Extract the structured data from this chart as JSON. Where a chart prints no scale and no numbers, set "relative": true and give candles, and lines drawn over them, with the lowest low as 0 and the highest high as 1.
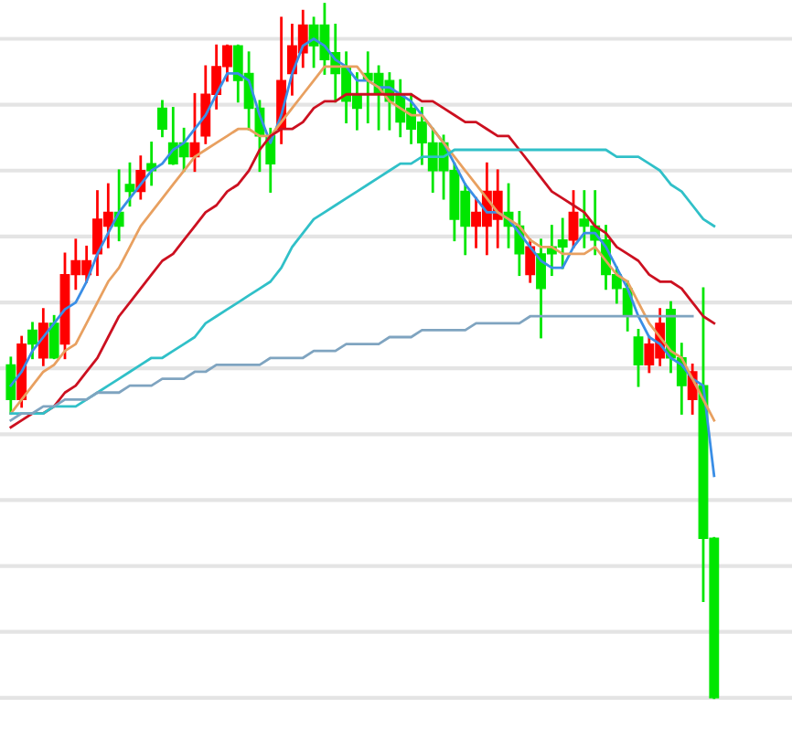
{
  "chart_data": {
    "type": "candlestick",
    "relative": true,
    "grid": "y",
    "categories": [
      null,
      null,
      null,
      null,
      null,
      null,
      null,
      null,
      null,
      null,
      null,
      null,
      null,
      null,
      null,
      null,
      null,
      null,
      null,
      null,
      null,
      null,
      null,
      null,
      null,
      null,
      null,
      null,
      null,
      null,
      null,
      null,
      null,
      null,
      null,
      null,
      null,
      null,
      null,
      null,
      null,
      null,
      null,
      null,
      null,
      null,
      null,
      null,
      null,
      null,
      null,
      null,
      null,
      null,
      null,
      null,
      null,
      null,
      null,
      null,
      null,
      null,
      null,
      null,
      null,
      null
    ],
    "colors": [
      "#00e600",
      "#ff0000",
      "#00e600",
      "#ff0000",
      "#00e600",
      "#ff0000",
      "#ff0000",
      "#ff0000",
      "#ff0000",
      "#ff0000",
      "#00e600",
      "#00e600",
      "#ff0000",
      "#00e600",
      "#00e600",
      "#00e600",
      "#00e600",
      "#ff0000",
      "#ff0000",
      "#ff0000",
      "#ff0000",
      "#00e600",
      "#00e600",
      "#00e600",
      "#00e600",
      "#ff0000",
      "#ff0000",
      "#ff0000",
      "#00e600",
      "#00e600",
      "#00e600",
      "#00e600",
      "#00e600",
      "#00e600",
      "#00e600",
      "#00e600",
      "#00e600",
      "#00e600",
      "#00e600",
      "#00e600",
      "#00e600",
      "#00e600",
      "#00e600",
      "#ff0000",
      "#ff0000",
      "#ff0000",
      "#00e600",
      "#00e600",
      "#ff0000",
      "#00e600",
      "#00e600",
      "#00e600",
      "#ff0000",
      "#00e600",
      "#00e600",
      "#00e600",
      "#00e600",
      "#00e600",
      "#00e600",
      "#ff0000",
      "#ff0000",
      "#00e600",
      "#00e600",
      "#ff0000",
      "#00e600",
      "#00e600"
    ],
    "ohlc": [
      [
        0.48,
        0.49,
        0.41,
        0.43
      ],
      [
        0.43,
        0.52,
        0.42,
        0.51
      ],
      [
        0.53,
        0.54,
        0.49,
        0.51
      ],
      [
        0.49,
        0.56,
        0.48,
        0.54
      ],
      [
        0.54,
        0.55,
        0.49,
        0.49
      ],
      [
        0.51,
        0.64,
        0.49,
        0.61
      ],
      [
        0.61,
        0.66,
        0.59,
        0.63
      ],
      [
        0.61,
        0.65,
        0.6,
        0.63
      ],
      [
        0.64,
        0.73,
        0.61,
        0.69
      ],
      [
        0.68,
        0.74,
        0.65,
        0.7
      ],
      [
        0.7,
        0.76,
        0.66,
        0.68
      ],
      [
        0.74,
        0.77,
        0.71,
        0.73
      ],
      [
        0.73,
        0.78,
        0.72,
        0.76
      ],
      [
        0.77,
        0.8,
        0.74,
        0.76
      ],
      [
        0.85,
        0.86,
        0.81,
        0.82
      ],
      [
        0.8,
        0.85,
        0.77,
        0.77
      ],
      [
        0.8,
        0.82,
        0.76,
        0.78
      ],
      [
        0.78,
        0.87,
        0.76,
        0.8
      ],
      [
        0.81,
        0.91,
        0.8,
        0.87
      ],
      [
        0.87,
        0.94,
        0.85,
        0.91
      ],
      [
        0.91,
        0.94,
        0.89,
        0.94
      ],
      [
        0.94,
        0.94,
        0.86,
        0.89
      ],
      [
        0.9,
        0.93,
        0.82,
        0.85
      ],
      [
        0.85,
        0.86,
        0.76,
        0.81
      ],
      [
        0.81,
        0.82,
        0.73,
        0.77
      ],
      [
        0.82,
        0.98,
        0.8,
        0.89
      ],
      [
        0.9,
        0.97,
        0.87,
        0.94
      ],
      [
        0.93,
        0.99,
        0.91,
        0.97
      ],
      [
        0.97,
        0.98,
        0.91,
        0.94
      ],
      [
        0.97,
        1.0,
        0.9,
        0.92
      ],
      [
        0.93,
        0.97,
        0.86,
        0.9
      ],
      [
        0.91,
        0.93,
        0.83,
        0.86
      ],
      [
        0.87,
        0.9,
        0.82,
        0.85
      ],
      [
        0.9,
        0.93,
        0.83,
        0.89
      ],
      [
        0.9,
        0.91,
        0.82,
        0.87
      ],
      [
        0.89,
        0.9,
        0.82,
        0.86
      ],
      [
        0.87,
        0.89,
        0.81,
        0.83
      ],
      [
        0.85,
        0.87,
        0.8,
        0.82
      ],
      [
        0.83,
        0.85,
        0.77,
        0.8
      ],
      [
        0.8,
        0.82,
        0.73,
        0.76
      ],
      [
        0.8,
        0.81,
        0.72,
        0.76
      ],
      [
        0.76,
        0.77,
        0.66,
        0.69
      ],
      [
        0.73,
        0.74,
        0.64,
        0.68
      ],
      [
        0.68,
        0.72,
        0.65,
        0.7
      ],
      [
        0.68,
        0.77,
        0.64,
        0.73
      ],
      [
        0.69,
        0.76,
        0.65,
        0.73
      ],
      [
        0.7,
        0.74,
        0.65,
        0.68
      ],
      [
        0.68,
        0.7,
        0.61,
        0.64
      ],
      [
        0.61,
        0.66,
        0.6,
        0.65
      ],
      [
        0.64,
        0.66,
        0.52,
        0.59
      ],
      [
        0.65,
        0.68,
        0.61,
        0.64
      ],
      [
        0.66,
        0.69,
        0.62,
        0.65
      ],
      [
        0.66,
        0.73,
        0.65,
        0.7
      ],
      [
        0.69,
        0.73,
        0.65,
        0.68
      ],
      [
        0.68,
        0.73,
        0.64,
        0.66
      ],
      [
        0.66,
        0.68,
        0.59,
        0.61
      ],
      [
        0.61,
        0.62,
        0.57,
        0.59
      ],
      [
        0.59,
        0.6,
        0.53,
        0.55
      ],
      [
        0.52,
        0.53,
        0.45,
        0.48
      ],
      [
        0.48,
        0.52,
        0.47,
        0.51
      ],
      [
        0.49,
        0.56,
        0.48,
        0.54
      ],
      [
        0.56,
        0.57,
        0.47,
        0.49
      ],
      [
        0.49,
        0.51,
        0.41,
        0.45
      ],
      [
        0.43,
        0.48,
        0.41,
        0.47
      ],
      [
        0.45,
        0.59,
        0.14,
        0.23
      ],
      [
        0.23,
        0.23,
        0.0,
        0.0
      ]
    ],
    "series": [
      {
        "type": "line",
        "color": "#3a8ee6",
        "values": [
          0.45,
          0.47,
          0.5,
          0.52,
          0.54,
          0.56,
          0.57,
          0.6,
          0.64,
          0.67,
          0.7,
          0.72,
          0.74,
          0.76,
          0.77,
          0.79,
          0.8,
          0.82,
          0.84,
          0.87,
          0.9,
          0.9,
          0.89,
          0.84,
          0.8,
          0.84,
          0.9,
          0.94,
          0.95,
          0.94,
          0.92,
          0.91,
          0.89,
          0.89,
          0.88,
          0.88,
          0.87,
          0.86,
          0.84,
          0.82,
          0.8,
          0.77,
          0.74,
          0.72,
          0.7,
          0.7,
          0.69,
          0.67,
          0.65,
          0.63,
          0.62,
          0.62,
          0.65,
          0.67,
          0.67,
          0.65,
          0.62,
          0.59,
          0.55,
          0.52,
          0.51,
          0.49,
          0.48,
          0.46,
          0.45,
          0.32
        ]
      },
      {
        "type": "line",
        "color": "#e8a060",
        "values": [
          0.41,
          0.43,
          0.45,
          0.47,
          0.48,
          0.5,
          0.51,
          0.54,
          0.57,
          0.6,
          0.62,
          0.65,
          0.68,
          0.7,
          0.72,
          0.74,
          0.76,
          0.78,
          0.79,
          0.8,
          0.81,
          0.82,
          0.82,
          0.81,
          0.81,
          0.83,
          0.85,
          0.87,
          0.89,
          0.91,
          0.91,
          0.91,
          0.91,
          0.89,
          0.88,
          0.86,
          0.85,
          0.84,
          0.84,
          0.82,
          0.8,
          0.78,
          0.76,
          0.74,
          0.72,
          0.7,
          0.69,
          0.68,
          0.66,
          0.65,
          0.65,
          0.64,
          0.64,
          0.64,
          0.65,
          0.63,
          0.61,
          0.6,
          0.57,
          0.54,
          0.52,
          0.5,
          0.49,
          0.46,
          0.43,
          0.4
        ]
      },
      {
        "type": "line",
        "color": "#cc1020",
        "values": [
          0.39,
          0.4,
          0.41,
          0.41,
          0.42,
          0.44,
          0.45,
          0.47,
          0.49,
          0.52,
          0.55,
          0.57,
          0.59,
          0.61,
          0.63,
          0.64,
          0.66,
          0.68,
          0.7,
          0.71,
          0.73,
          0.74,
          0.76,
          0.79,
          0.81,
          0.82,
          0.82,
          0.83,
          0.85,
          0.86,
          0.86,
          0.87,
          0.87,
          0.87,
          0.87,
          0.87,
          0.87,
          0.87,
          0.86,
          0.86,
          0.85,
          0.84,
          0.83,
          0.83,
          0.82,
          0.81,
          0.81,
          0.79,
          0.77,
          0.75,
          0.73,
          0.72,
          0.71,
          0.7,
          0.68,
          0.67,
          0.65,
          0.64,
          0.63,
          0.61,
          0.6,
          0.6,
          0.59,
          0.57,
          0.55,
          0.54
        ]
      },
      {
        "type": "line",
        "color": "#30c0c8",
        "values": [
          0.41,
          0.41,
          0.41,
          0.41,
          0.42,
          0.42,
          0.42,
          0.43,
          0.44,
          0.45,
          0.46,
          0.47,
          0.48,
          0.49,
          0.49,
          0.5,
          0.51,
          0.52,
          0.54,
          0.55,
          0.56,
          0.57,
          0.58,
          0.59,
          0.6,
          0.62,
          0.65,
          0.67,
          0.69,
          0.7,
          0.71,
          0.72,
          0.73,
          0.74,
          0.75,
          0.76,
          0.77,
          0.77,
          0.78,
          0.78,
          0.78,
          0.79,
          0.79,
          0.79,
          0.79,
          0.79,
          0.79,
          0.79,
          0.79,
          0.79,
          0.79,
          0.79,
          0.79,
          0.79,
          0.79,
          0.79,
          0.78,
          0.78,
          0.78,
          0.77,
          0.76,
          0.74,
          0.73,
          0.71,
          0.69,
          0.68
        ]
      },
      {
        "type": "line",
        "color": "#7fa4c0",
        "values": [
          0.4,
          0.41,
          0.41,
          0.42,
          0.42,
          0.43,
          0.43,
          0.43,
          0.44,
          0.44,
          0.44,
          0.45,
          0.45,
          0.45,
          0.46,
          0.46,
          0.46,
          0.47,
          0.47,
          0.48,
          0.48,
          0.48,
          0.48,
          0.48,
          0.49,
          0.49,
          0.49,
          0.49,
          0.5,
          0.5,
          0.5,
          0.51,
          0.51,
          0.51,
          0.51,
          0.52,
          0.52,
          0.52,
          0.53,
          0.53,
          0.53,
          0.53,
          0.53,
          0.54,
          0.54,
          0.54,
          0.54,
          0.54,
          0.55,
          0.55,
          0.55,
          0.55,
          0.55,
          0.55,
          0.55,
          0.55,
          0.55,
          0.55,
          0.55,
          0.55,
          0.55,
          0.55,
          0.55,
          0.55,
          null,
          null
        ]
      }
    ]
  }
}
